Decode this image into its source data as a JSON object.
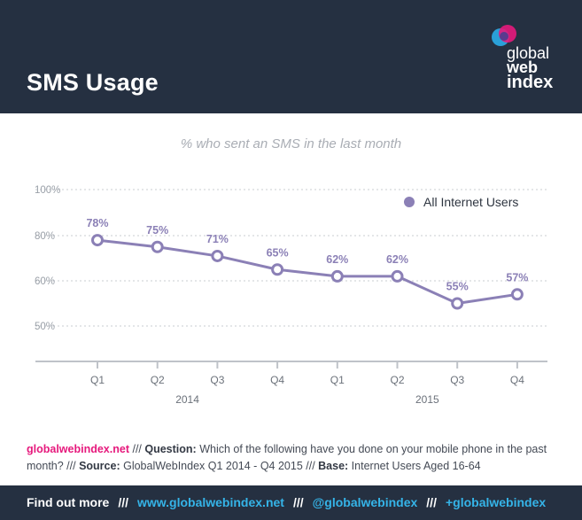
{
  "header": {
    "title": "SMS Usage",
    "logo": {
      "line1": "global",
      "line2": "web",
      "line3": "index"
    }
  },
  "chart_data": {
    "type": "line",
    "title": "% who sent an SMS in the last month",
    "categories": [
      "Q1",
      "Q2",
      "Q3",
      "Q4",
      "Q1",
      "Q2",
      "Q3",
      "Q4"
    ],
    "years": [
      {
        "label": "2014",
        "span": [
          0,
          3
        ]
      },
      {
        "label": "2015",
        "span": [
          4,
          7
        ]
      }
    ],
    "series": [
      {
        "name": "All Internet Users",
        "color": "#8b80b6",
        "values": [
          78,
          75,
          71,
          65,
          62,
          62,
          55,
          57
        ],
        "value_labels": [
          "78%",
          "75%",
          "71%",
          "65%",
          "62%",
          "62%",
          "55%",
          "57%"
        ]
      }
    ],
    "y_ticks": [
      {
        "value": 100,
        "label": "100%"
      },
      {
        "value": 80,
        "label": "80%"
      },
      {
        "value": 60,
        "label": "60%"
      },
      {
        "value": 50,
        "label": "50%"
      }
    ],
    "legend_position": "top-right",
    "grid": true
  },
  "footnote": {
    "brand": "globalwebindex.net",
    "sep1": " /// ",
    "question_label": "Question:",
    "question_text": " Which of the following have you done on your mobile phone in the past month?",
    "sep2": " /// ",
    "source_label": "Source:",
    "source_text": " GlobalWebIndex Q1 2014 - Q4 2015",
    "sep3": " /// ",
    "base_label": "Base:",
    "base_text": " Internet Users Aged 16-64"
  },
  "footer": {
    "find_out": "Find out more",
    "sep": "///",
    "website": "www.globalwebindex.net",
    "twitter": "@globalwebindex",
    "gplus": "+globalwebindex"
  }
}
